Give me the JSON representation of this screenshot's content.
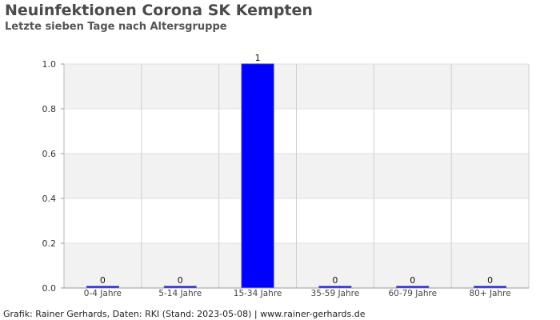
{
  "chart_data": {
    "type": "bar",
    "title": "Neuinfektionen Corona SK Kempten",
    "subtitle": "Letzte sieben Tage nach Altersgruppe",
    "categories": [
      "0-4 Jahre",
      "5-14 Jahre",
      "15-34 Jahre",
      "35-59 Jahre",
      "60-79 Jahre",
      "80+ Jahre"
    ],
    "values": [
      0,
      0,
      1,
      0,
      0,
      0
    ],
    "data_labels": [
      "0",
      "0",
      "1",
      "0",
      "0",
      "0"
    ],
    "xlabel": "",
    "ylabel": "",
    "ylim": [
      0,
      1.0
    ],
    "yticks": [
      "0.0",
      "0.2",
      "0.4",
      "0.6",
      "0.8",
      "1.0"
    ],
    "grid": true,
    "bar_color": "#0000ff",
    "band_color": "#f2f2f2"
  },
  "footer": "Grafik: Rainer Gerhards, Daten: RKI (Stand: 2023-05-08) | www.rainer-gerhards.de"
}
